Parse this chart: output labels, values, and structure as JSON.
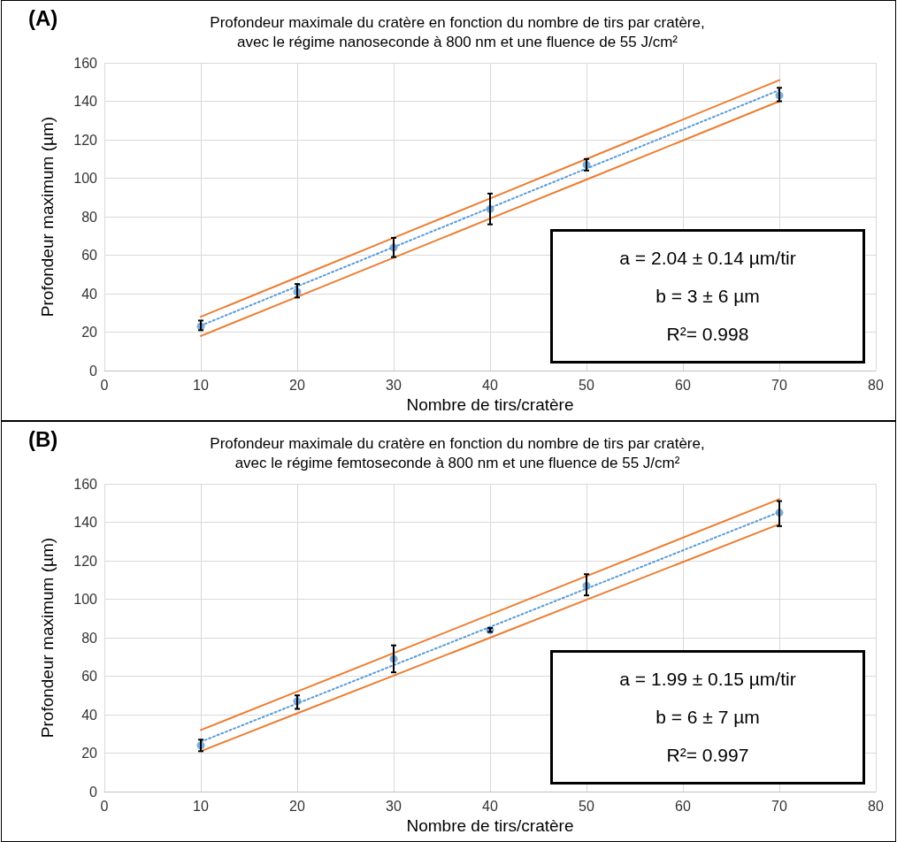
{
  "chart_data": [
    {
      "type": "scatter",
      "title": "Profondeur maximale du cratère en fonction du nombre de tirs par cratère,\navec le régime nanoseconde à 800 nm et une fluence de 55 J/cm²",
      "xlabel": "Nombre de tirs/cratère",
      "ylabel": "Profondeur maximum (µm)",
      "annotations": [
        "(A)",
        "a = 2.04 ± 0.14 µm/tir",
        "b = 3 ± 6 µm",
        "R²= 0.998"
      ],
      "x": [
        10,
        20,
        30,
        40,
        50,
        70
      ],
      "series": [
        {
          "type": "scatter",
          "color": "#5b9bd5",
          "marker": "circle",
          "values": [
            23,
            41,
            64,
            84,
            107,
            143
          ],
          "errors": [
            [
              21,
              26
            ],
            [
              38,
              45
            ],
            [
              59,
              69
            ],
            [
              76,
              92
            ],
            [
              104,
              110
            ],
            [
              140,
              147
            ]
          ]
        },
        {
          "type": "line",
          "color": "#5b9bd5",
          "line_style": "dotted",
          "marker": "none",
          "values": [
            23.4,
            43.8,
            64.2,
            84.6,
            105,
            145.8
          ]
        },
        {
          "type": "line",
          "color": "#ed7d31",
          "line_style": "solid",
          "marker": "none",
          "values": [
            28,
            48.5,
            69,
            89.5,
            110,
            151
          ]
        },
        {
          "type": "line",
          "color": "#ed7d31",
          "line_style": "solid",
          "marker": "none",
          "values": [
            18,
            38.3,
            58.7,
            79,
            99.3,
            140
          ]
        }
      ],
      "xlim": [
        0,
        80
      ],
      "xticks": [
        0,
        10,
        20,
        30,
        40,
        50,
        60,
        70,
        80
      ],
      "ylim": [
        0,
        160
      ],
      "yticks": [
        0,
        20,
        40,
        60,
        80,
        100,
        120,
        140,
        160
      ],
      "grid": true
    },
    {
      "type": "scatter",
      "title": "Profondeur maximale du cratère en fonction du nombre de tirs par cratère,\navec le régime femtoseconde à 800 nm et une fluence de 55 J/cm²",
      "xlabel": "Nombre de tirs/cratère",
      "ylabel": "Profondeur maximum (µm)",
      "annotations": [
        "(B)",
        "a = 1.99 ± 0.15 µm/tir",
        "b = 6 ± 7 µm",
        "R²= 0.997"
      ],
      "x": [
        10,
        20,
        30,
        40,
        50,
        70
      ],
      "series": [
        {
          "type": "scatter",
          "color": "#5b9bd5",
          "marker": "circle",
          "values": [
            24,
            47,
            69,
            84,
            107,
            145
          ],
          "errors": [
            [
              21,
              27
            ],
            [
              43,
              50
            ],
            [
              62,
              76
            ],
            [
              83,
              85
            ],
            [
              102,
              113
            ],
            [
              138,
              151
            ]
          ]
        },
        {
          "type": "line",
          "color": "#5b9bd5",
          "line_style": "dotted",
          "marker": "none",
          "values": [
            25.9,
            45.8,
            65.7,
            85.6,
            105.5,
            145.3
          ]
        },
        {
          "type": "line",
          "color": "#ed7d31",
          "line_style": "solid",
          "marker": "none",
          "values": [
            32,
            52,
            72,
            92,
            112,
            152
          ]
        },
        {
          "type": "line",
          "color": "#ed7d31",
          "line_style": "solid",
          "marker": "none",
          "values": [
            21,
            40.7,
            60.3,
            80,
            99.7,
            139
          ]
        }
      ],
      "xlim": [
        0,
        80
      ],
      "xticks": [
        0,
        10,
        20,
        30,
        40,
        50,
        60,
        70,
        80
      ],
      "ylim": [
        0,
        160
      ],
      "yticks": [
        0,
        20,
        40,
        60,
        80,
        100,
        120,
        140,
        160
      ],
      "grid": true
    }
  ]
}
